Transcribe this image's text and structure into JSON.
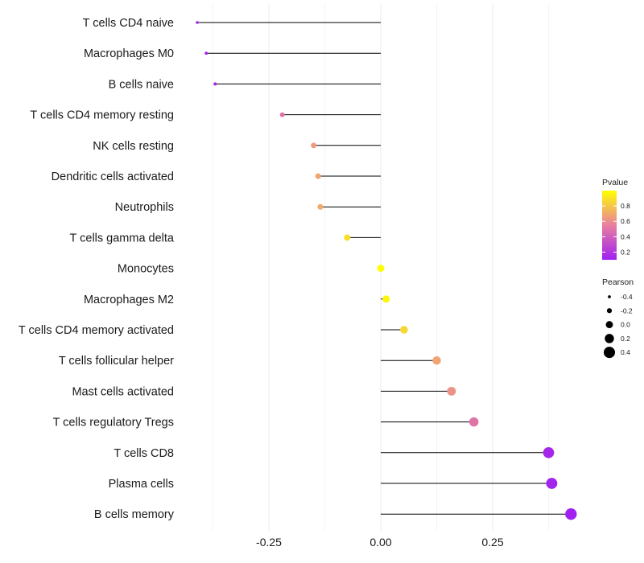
{
  "chart_data": {
    "type": "lollipop",
    "orientation": "horizontal",
    "categories": [
      "T cells CD4 naive",
      "Macrophages M0",
      "B cells naive",
      "T cells CD4 memory resting",
      "NK cells resting",
      "Dendritic cells activated",
      "Neutrophils",
      "T cells gamma delta",
      "Monocytes",
      "Macrophages M2",
      "T cells CD4 memory activated",
      "T cells follicular helper",
      "Mast cells activated",
      "T cells regulatory  Tregs ",
      "T cells CD8",
      "Plasma cells",
      "B cells memory"
    ],
    "pearson": [
      -0.41,
      -0.39,
      -0.37,
      -0.22,
      -0.15,
      -0.14,
      -0.135,
      -0.075,
      0.0,
      0.012,
      0.052,
      0.125,
      0.158,
      0.208,
      0.375,
      0.382,
      0.425
    ],
    "pvalue": [
      0.1,
      0.12,
      0.14,
      0.5,
      0.65,
      0.68,
      0.7,
      0.88,
      0.99,
      0.97,
      0.86,
      0.68,
      0.62,
      0.5,
      0.13,
      0.12,
      0.1
    ],
    "xlim": [
      -0.45,
      0.5
    ],
    "x_ticks": [
      -0.25,
      0.0,
      0.25
    ],
    "x_tick_labels": [
      "-0.25",
      "0.00",
      "0.25"
    ],
    "gridlines": true,
    "colors": {
      "low": "#a020f0",
      "high": "#ffff00",
      "stem": "#000000",
      "grid": "#ebebeb"
    },
    "legend_color": {
      "title": "Pvalue",
      "min": 0.1,
      "max": 1.0,
      "ticks": [
        0.2,
        0.4,
        0.6,
        0.8
      ],
      "tick_labels": [
        "0.2",
        "0.4",
        "0.6",
        "0.8"
      ]
    },
    "legend_size": {
      "title": "Pearson",
      "values": [
        -0.4,
        -0.2,
        0.0,
        0.2,
        0.4
      ],
      "labels": [
        "-0.4",
        "-0.2",
        "0.0",
        "0.2",
        "0.4"
      ]
    },
    "legend_position": "right"
  }
}
